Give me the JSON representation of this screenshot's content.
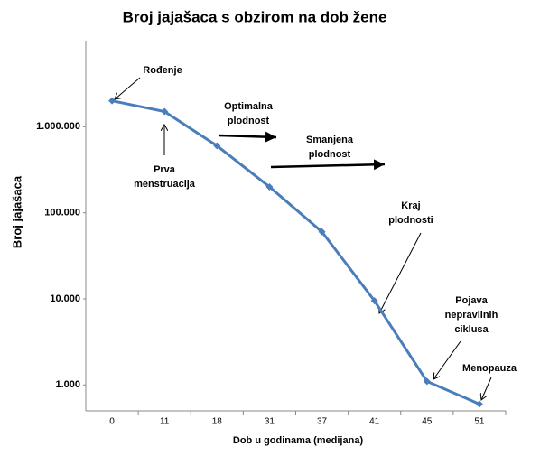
{
  "chart_data": {
    "type": "line",
    "title": "Broj jajašaca s obzirom na dob žene",
    "x_label": "Dob u godinama (medijana)",
    "y_label": "Broj jajašaca",
    "categories": [
      "0",
      "11",
      "18",
      "31",
      "37",
      "41",
      "45",
      "51"
    ],
    "series": [
      {
        "name": "Broj jajašaca",
        "color": "#4a7ebb",
        "values": [
          2000000,
          1500000,
          600000,
          200000,
          60000,
          9500,
          1100,
          600
        ]
      }
    ],
    "log_scale": true,
    "ylim": [
      500,
      10000000
    ],
    "yticks": [
      {
        "value": 1000,
        "label": "1.000"
      },
      {
        "value": 10000,
        "label": "10.000"
      },
      {
        "value": 100000,
        "label": "100.000"
      },
      {
        "value": 1000000,
        "label": "1.000.000"
      }
    ],
    "annotations": [
      [
        "Rođenje"
      ],
      [
        "Prva",
        "menstruacija"
      ],
      [
        "Optimalna",
        "plodnost"
      ],
      [
        "Smanjena",
        "plodnost"
      ],
      [
        "Kraj",
        "plodnosti"
      ],
      [
        "Pojava",
        "nepravilnih",
        "ciklusa"
      ],
      [
        "Menopauza"
      ]
    ]
  }
}
